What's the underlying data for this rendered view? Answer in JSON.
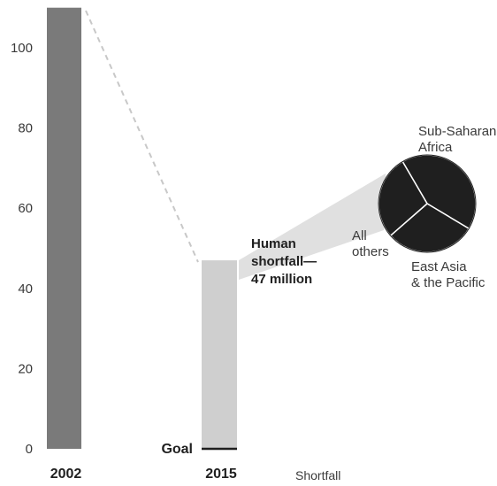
{
  "chart_data": [
    {
      "type": "bar",
      "categories": [
        "2002",
        "2015"
      ],
      "values": [
        110,
        47
      ],
      "ylim": [
        0,
        110
      ],
      "yticks": [
        0,
        20,
        40,
        60,
        80,
        100
      ],
      "colors": [
        "#7a7a7a",
        "#cfcfcf"
      ],
      "grid": false,
      "annotations": {
        "goal_label": "Goal",
        "goal_value": 0,
        "shortfall_lines": [
          "Human",
          "shortfall—",
          "47 million"
        ],
        "shortfall_value": 47,
        "bottom_label": "Shortfall"
      }
    },
    {
      "type": "pie",
      "labels": [
        "Sub-Saharan Africa",
        "East Asia & the Pacific",
        "All others"
      ],
      "label_lines": [
        [
          "Sub-Saharan",
          "Africa"
        ],
        [
          "East Asia",
          "& the Pacific"
        ],
        [
          "All",
          "others"
        ]
      ],
      "values": [
        42,
        30,
        28
      ],
      "color": "#1f1f1f"
    }
  ]
}
